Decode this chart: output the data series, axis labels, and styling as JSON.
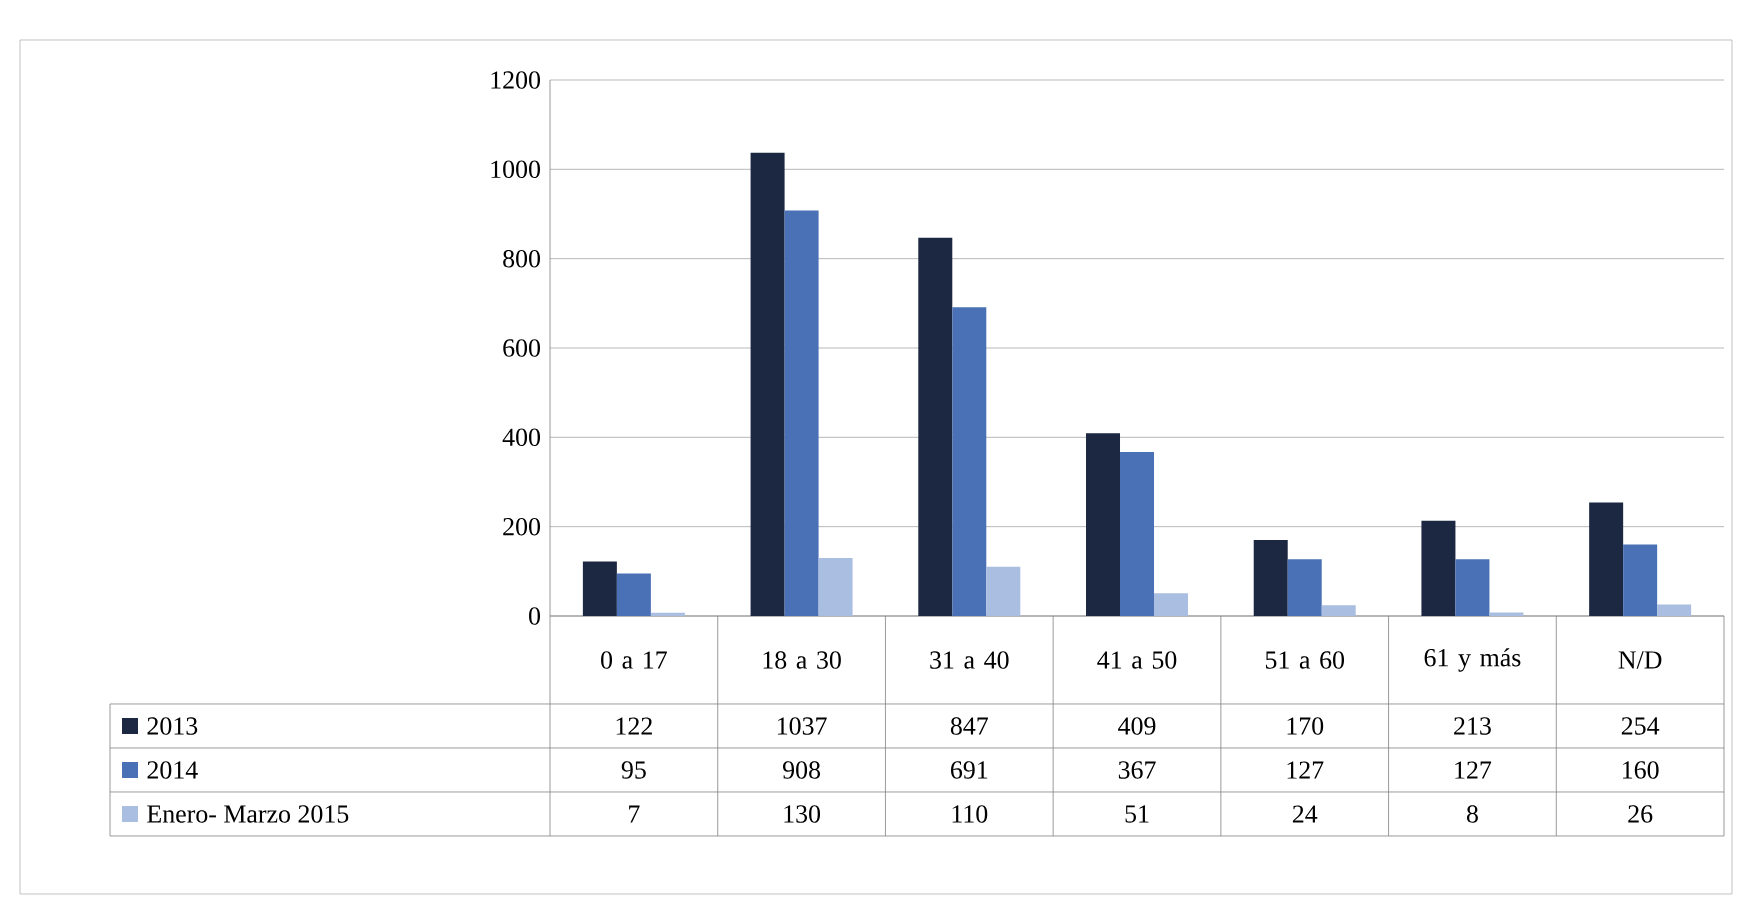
{
  "chart_data": {
    "type": "bar",
    "categories": [
      "0 a 17",
      "18 a 30",
      "31 a 40",
      "41 a 50",
      "51 a 60",
      "61 y más",
      "N/D"
    ],
    "series": [
      {
        "name": "2013",
        "color": "#1c2741",
        "values": [
          122,
          1037,
          847,
          409,
          170,
          213,
          254
        ]
      },
      {
        "name": "2014",
        "color": "#4a70b5",
        "values": [
          95,
          908,
          691,
          367,
          127,
          127,
          160
        ]
      },
      {
        "name": "Enero- Marzo 2015",
        "color": "#a9bee0",
        "values": [
          7,
          130,
          110,
          51,
          24,
          8,
          26
        ]
      }
    ],
    "ylim": [
      0,
      1200
    ],
    "yticks": [
      0,
      200,
      400,
      600,
      800,
      1000,
      1200
    ],
    "grid": "y",
    "legend": "bottom",
    "data_labels": true
  }
}
